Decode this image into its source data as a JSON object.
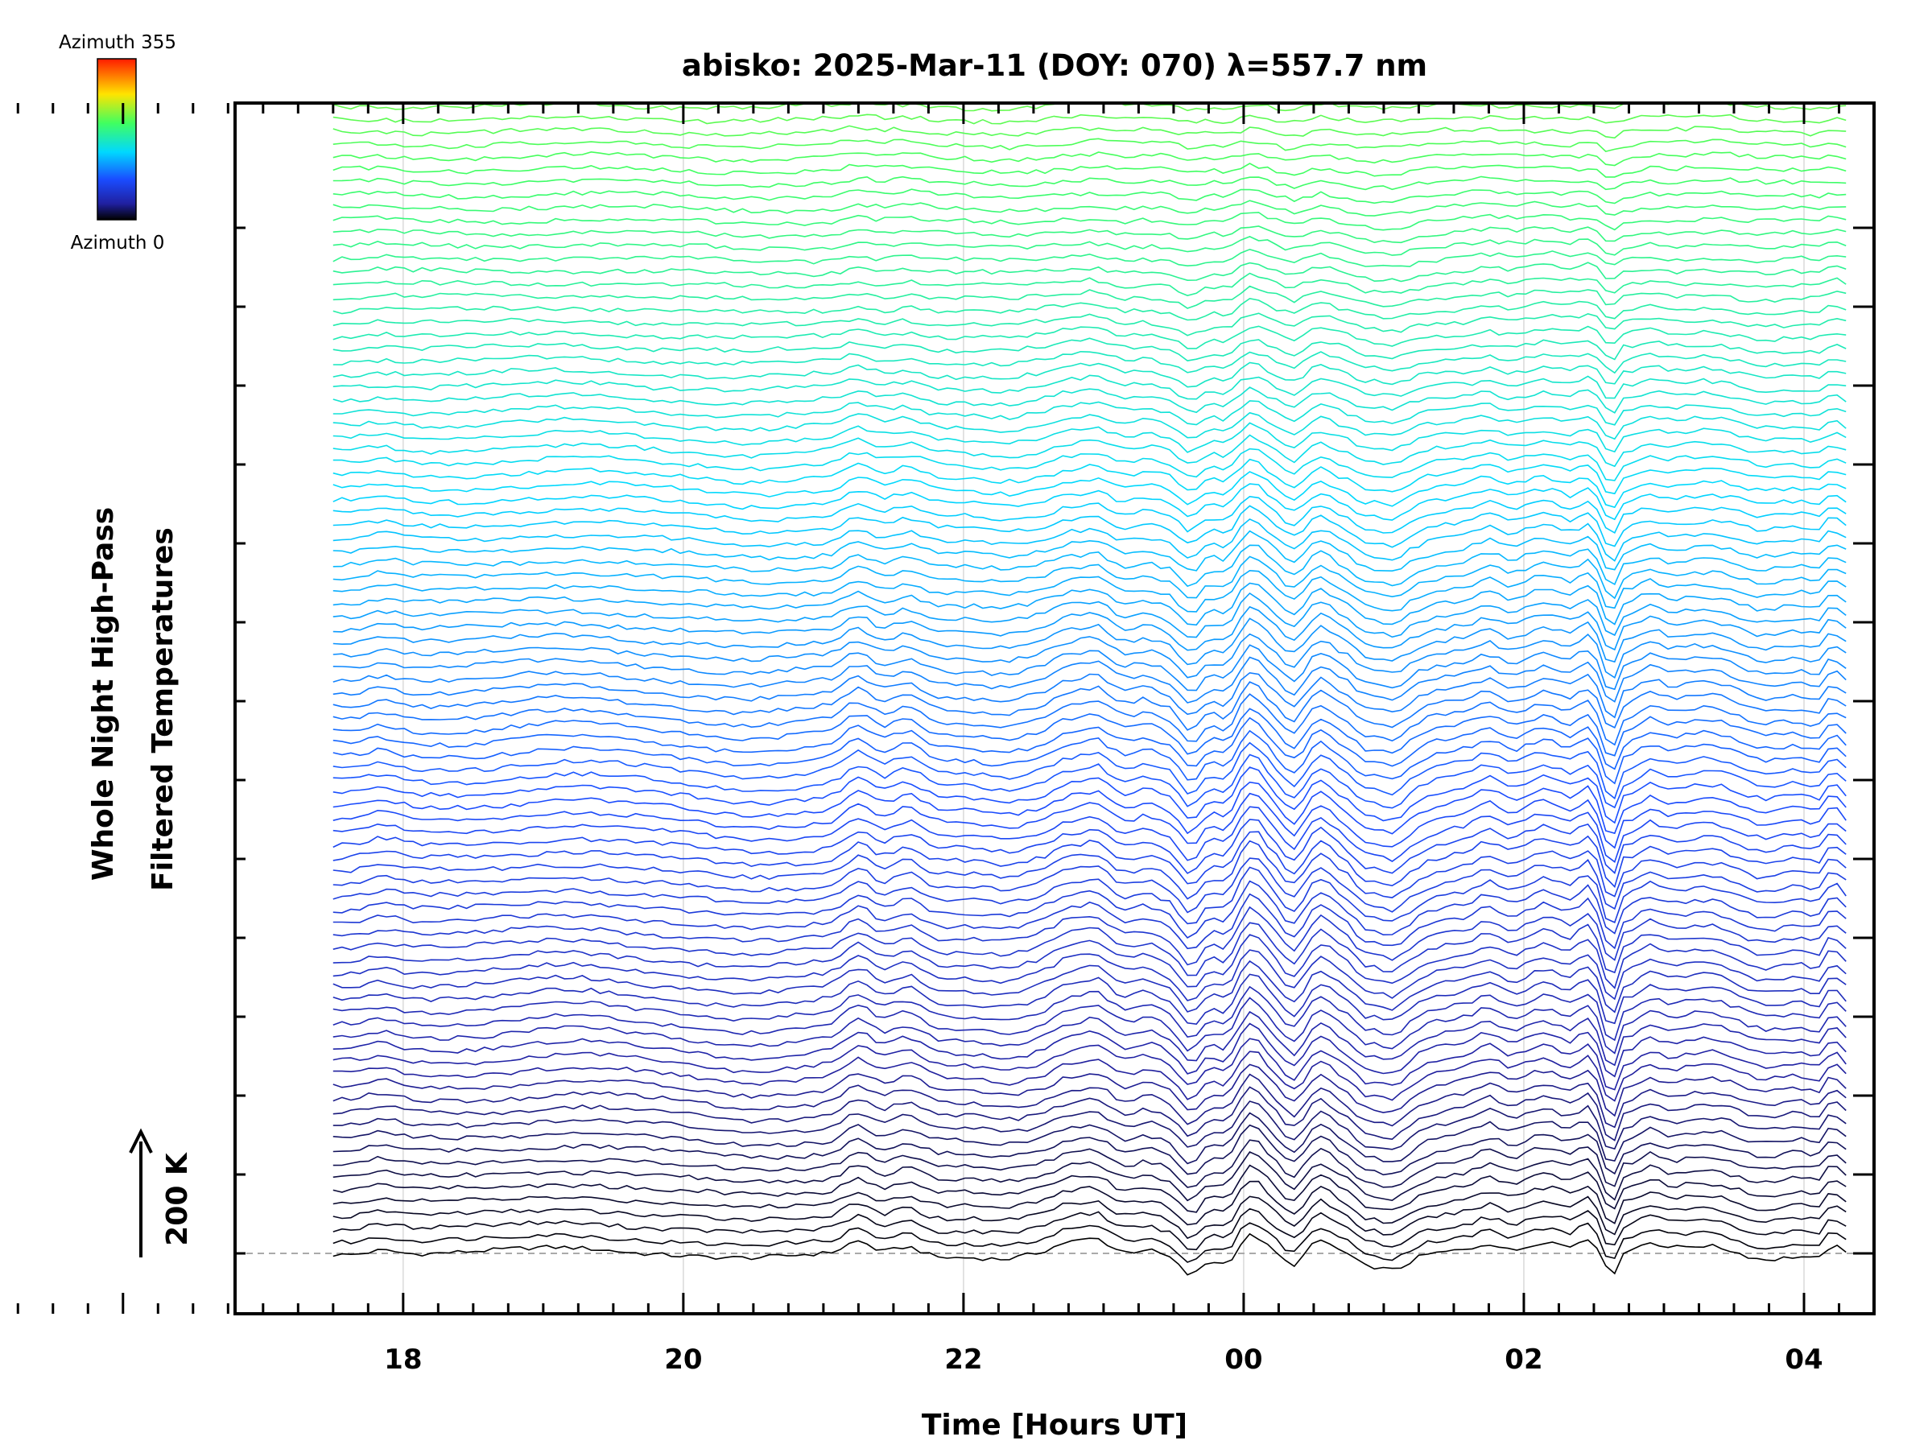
{
  "chart_data": {
    "type": "line",
    "title": "abisko: 2025-Mar-11 (DOY: 070) λ=557.7 nm",
    "xlabel": "Time [Hours UT]",
    "ylabel": [
      "Whole Night High-Pass",
      "Filtered Temperatures"
    ],
    "scale_bar": {
      "label": "200 K",
      "value_K": 200
    },
    "colorbar": {
      "top_label": "Azimuth 355",
      "bottom_label": "Azimuth 0",
      "min": 0,
      "max": 355,
      "colormap": "rainbow"
    },
    "x_tick_labels": [
      "18",
      "20",
      "22",
      "00",
      "02",
      "04"
    ],
    "x_ticks_hours": [
      18,
      20,
      22,
      24,
      26,
      28
    ],
    "xlim_hours": [
      16.8,
      28.5
    ],
    "x_data_range_hours": [
      17.5,
      28.3
    ],
    "grid": "vertical dotted lines at labelled hours",
    "series_count": 144,
    "azimuth_step_deg": 2.5,
    "waterfall_offset_K": 20.3,
    "baseline_ref": "dashed line at first series baseline",
    "events": [
      {
        "hour": 17.85,
        "amp": 10,
        "w": 0.15
      },
      {
        "hour": 19.2,
        "amp": 12,
        "w": 0.5
      },
      {
        "hour": 20.5,
        "amp": -12,
        "w": 0.45
      },
      {
        "hour": 21.9,
        "amp": -6,
        "w": 0.5
      },
      {
        "hour": 21.25,
        "amp": 28,
        "w": 0.13
      },
      {
        "hour": 21.6,
        "amp": 22,
        "w": 0.14
      },
      {
        "hour": 22.3,
        "amp": -9,
        "w": 0.18
      },
      {
        "hour": 22.75,
        "amp": 20,
        "w": 0.14
      },
      {
        "hour": 22.95,
        "amp": 26,
        "w": 0.12
      },
      {
        "hour": 23.3,
        "amp": 8,
        "w": 0.08
      },
      {
        "hour": 23.62,
        "amp": -44,
        "w": 0.11
      },
      {
        "hour": 23.88,
        "amp": -24,
        "w": 0.1
      },
      {
        "hour": 24.05,
        "amp": 44,
        "w": 0.13
      },
      {
        "hour": 24.35,
        "amp": -26,
        "w": 0.09
      },
      {
        "hour": 24.55,
        "amp": 26,
        "w": 0.1
      },
      {
        "hour": 24.85,
        "amp": -20,
        "w": 0.09
      },
      {
        "hour": 25.05,
        "amp": -40,
        "w": 0.17
      },
      {
        "hour": 25.55,
        "amp": 8,
        "w": 0.15
      },
      {
        "hour": 25.75,
        "amp": 24,
        "w": 0.12
      },
      {
        "hour": 26.15,
        "amp": 28,
        "w": 0.2
      },
      {
        "hour": 26.45,
        "amp": 30,
        "w": 0.08
      },
      {
        "hour": 26.62,
        "amp": -60,
        "w": 0.05
      },
      {
        "hour": 26.9,
        "amp": 18,
        "w": 0.1
      },
      {
        "hour": 27.3,
        "amp": 16,
        "w": 0.3
      },
      {
        "hour": 27.7,
        "amp": -12,
        "w": 0.2
      },
      {
        "hour": 28.1,
        "amp": -10,
        "w": 0.1
      },
      {
        "hour": 28.2,
        "amp": 24,
        "w": 0.06
      }
    ],
    "colors": {
      "frame": "#000000",
      "grid": "#d9d9d9",
      "baseline": "#aaaaaa"
    }
  }
}
